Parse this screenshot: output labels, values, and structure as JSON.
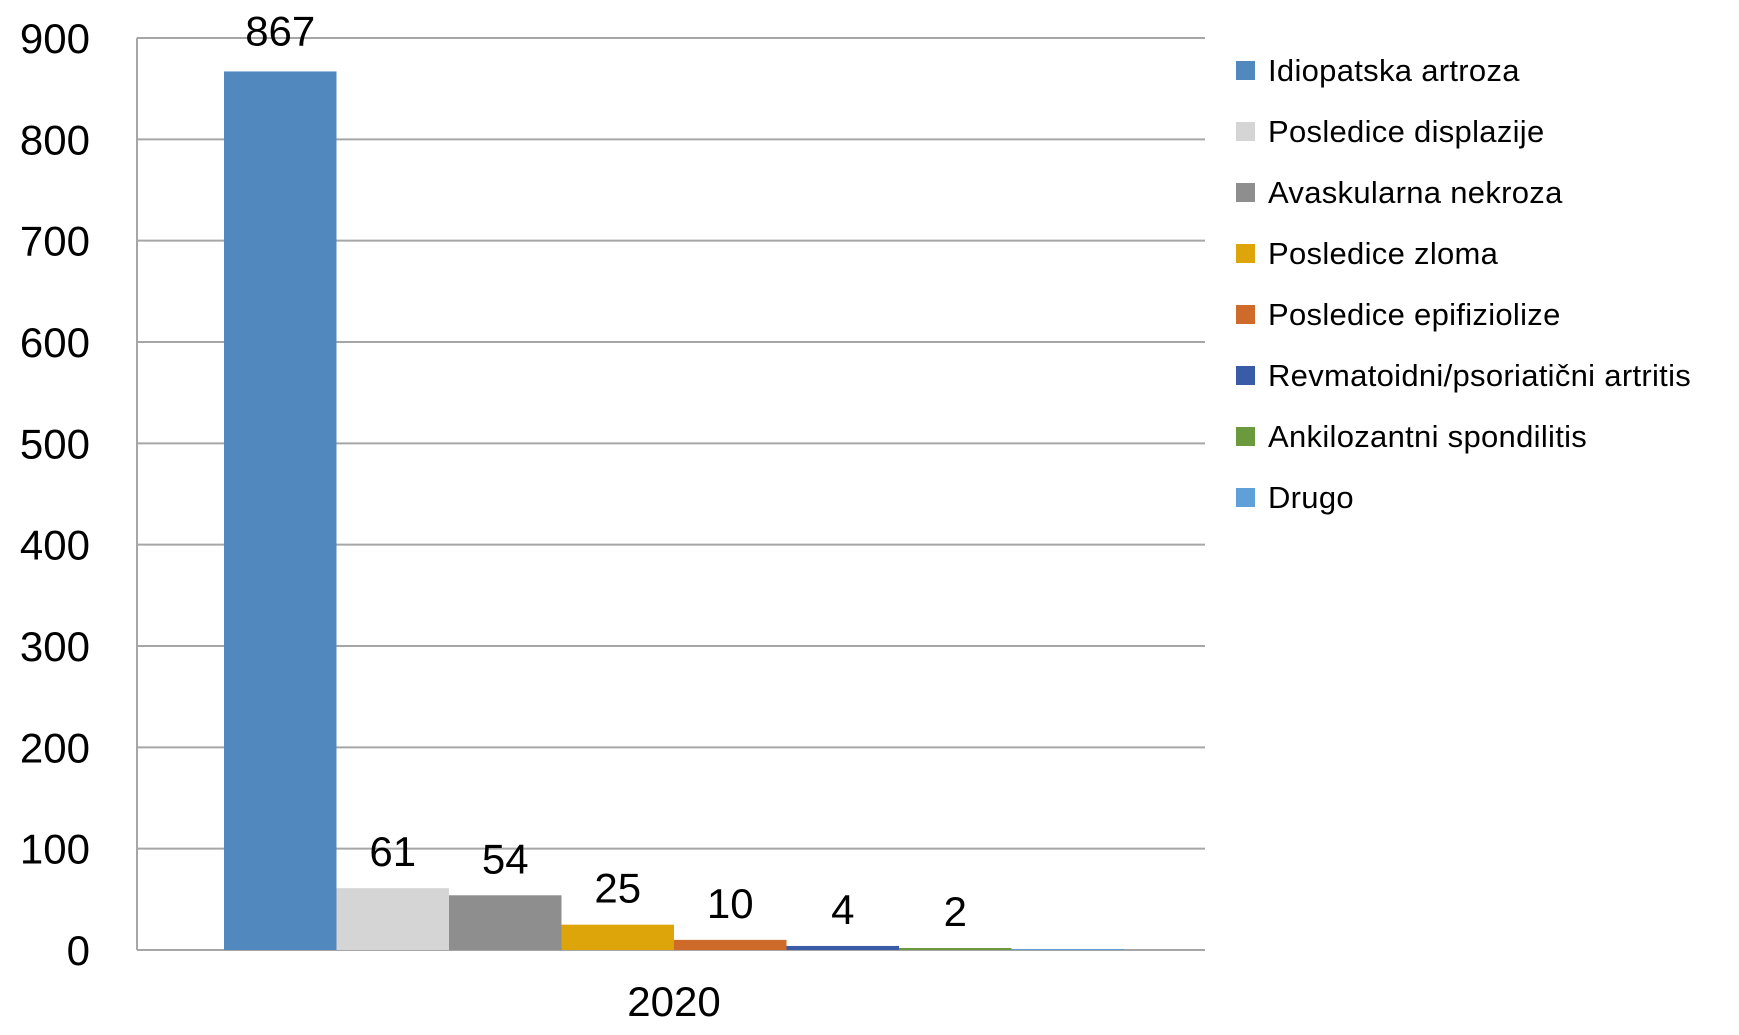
{
  "chart_data": {
    "type": "bar",
    "categories": [
      "2020"
    ],
    "series": [
      {
        "name": "Idiopatska artroza",
        "values": [
          867
        ],
        "color": "#5189bf",
        "label": "867"
      },
      {
        "name": "Posledice displazije",
        "values": [
          61
        ],
        "color": "#d5d5d5",
        "label": "61"
      },
      {
        "name": "Avaskularna nekroza",
        "values": [
          54
        ],
        "color": "#8e8e8e",
        "label": "54"
      },
      {
        "name": "Posledice zloma",
        "values": [
          25
        ],
        "color": "#dea50b",
        "label": "25"
      },
      {
        "name": "Posledice epifiziolize",
        "values": [
          10
        ],
        "color": "#ce6a2a",
        "label": "10"
      },
      {
        "name": "Revmatoidni/psoriatični artritis",
        "values": [
          4
        ],
        "color": "#3a5ba5",
        "label": "4"
      },
      {
        "name": "Ankilozantni spondilitis",
        "values": [
          2
        ],
        "color": "#6a9a3d",
        "label": "2"
      },
      {
        "name": "Drugo",
        "values": [
          1
        ],
        "color": "#5fa0d9",
        "label": ""
      }
    ],
    "ylim": [
      0,
      900
    ],
    "yticks": [
      "0",
      "100",
      "200",
      "300",
      "400",
      "500",
      "600",
      "700",
      "800",
      "900"
    ],
    "grid": true,
    "legend_position": "right",
    "title": "",
    "xlabel": "",
    "ylabel": ""
  }
}
